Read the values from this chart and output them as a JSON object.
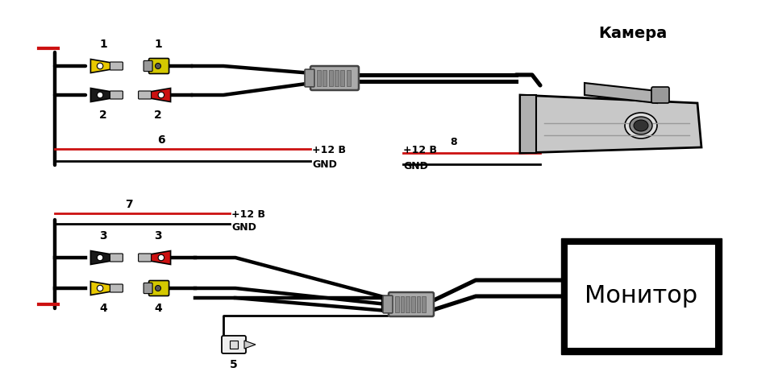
{
  "bg_color": "#ffffff",
  "connector_colors": {
    "yellow": "#E8C800",
    "black": "#1a1a1a",
    "red": "#CC1111",
    "gray": "#888888",
    "light_gray": "#cccccc",
    "dark_gray": "#555555",
    "silver": "#aaaaaa",
    "wire_black": "#111111",
    "wire_red": "#CC1111"
  },
  "labels": {
    "camera": "Камера",
    "monitor": "Монитор",
    "plus12v": "+12 В",
    "gnd": "GND",
    "n1": "1",
    "n2": "2",
    "n3": "3",
    "n4": "4",
    "n5": "5",
    "n6": "6",
    "n7": "7",
    "n8": "8"
  }
}
